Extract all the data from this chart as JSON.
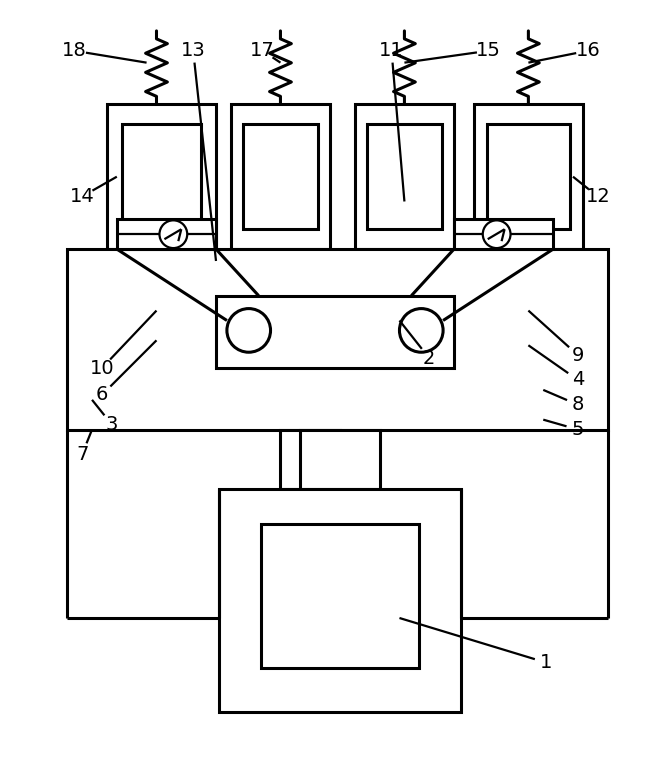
{
  "fig_width": 6.7,
  "fig_height": 7.58,
  "dpi": 100,
  "bg_color": "#ffffff",
  "lc": "#000000",
  "lw": 2.2,
  "tlw": 1.6
}
